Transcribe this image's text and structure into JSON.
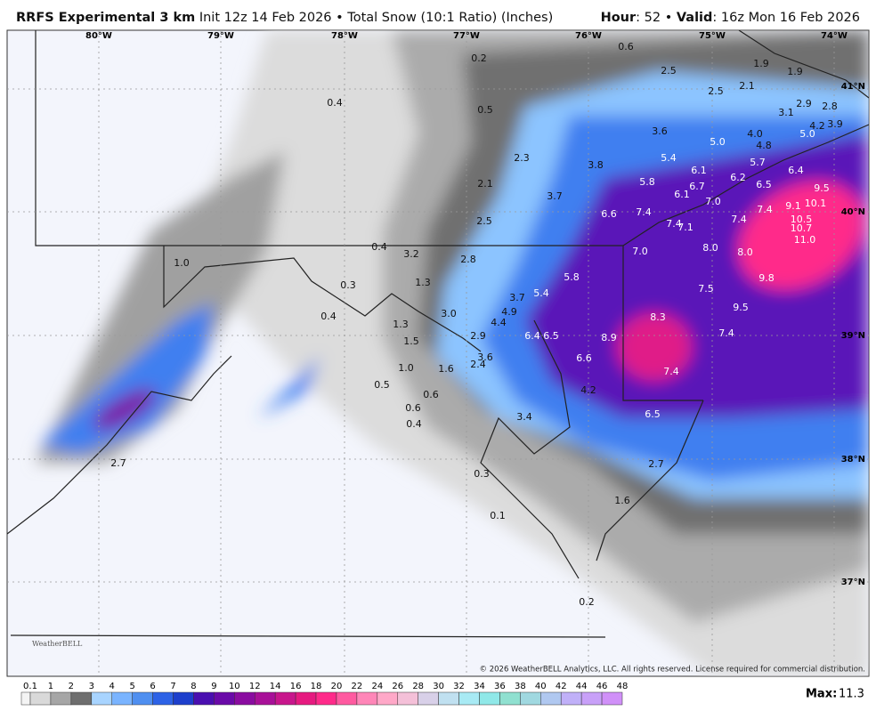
{
  "header": {
    "model": "RRFS Experimental 3 km",
    "description": "Init 12z 14 Feb 2026 • Total Snow (10:1 Ratio) (Inches)",
    "hour_label": "Hour",
    "hour": ": 52 •",
    "valid_label": "Valid",
    "valid": ": 16z Mon 16 Feb 2026"
  },
  "map": {
    "longitudes": [
      "80°W",
      "79°W",
      "78°W",
      "77°W",
      "76°W",
      "75°W",
      "74°W"
    ],
    "latitudes": [
      "41°N",
      "40°N",
      "39°N",
      "38°N",
      "37°N"
    ],
    "point_labels": [
      "0.6",
      "0.2",
      "2.5",
      "1.9",
      "1.9",
      "2.1",
      "2.5",
      "0.4",
      "0.5",
      "2.9",
      "2.8",
      "3.1",
      "3.6",
      "4.0",
      "4.2",
      "3.9",
      "5.0",
      "5.0",
      "4.8",
      "2.3",
      "3.8",
      "5.4",
      "5.7",
      "6.1",
      "6.4",
      "6.2",
      "5.8",
      "2.1",
      "6.7",
      "6.5",
      "9.5",
      "3.7",
      "6.1",
      "7.0",
      "9.1",
      "10.1",
      "6.6",
      "7.4",
      "7.4",
      "7.4",
      "10.5",
      "2.5",
      "7.4",
      "7.1",
      "10.7",
      "11.0",
      "0.4",
      "8.0",
      "8.0",
      "7.0",
      "3.2",
      "2.8",
      "1.0",
      "5.8",
      "9.8",
      "0.3",
      "1.3",
      "7.5",
      "5.4",
      "3.7",
      "0.4",
      "3.0",
      "4.9",
      "9.5",
      "8.3",
      "1.3",
      "4.4",
      "6.4",
      "6.5",
      "8.9",
      "7.4",
      "1.5",
      "2.9",
      "3.6",
      "6.6",
      "2.4",
      "1.0",
      "1.6",
      "7.4",
      "0.5",
      "4.2",
      "0.6",
      "0.6",
      "6.5",
      "3.4",
      "0.4",
      "2.7",
      "0.3",
      "2.7",
      "1.6",
      "0.1",
      "0.2"
    ],
    "copyright": "© 2026 WeatherBELL Analytics, LLC. All rights reserved. License required for commercial distribution.",
    "logo": "WeatherBELL"
  },
  "colorbar": {
    "levels": [
      0.1,
      1,
      2,
      3,
      4,
      5,
      6,
      7,
      8,
      9,
      10,
      12,
      14,
      16,
      18,
      20,
      22,
      24,
      26,
      28,
      30,
      32,
      34,
      36,
      38,
      40,
      42,
      44,
      46,
      48
    ],
    "colors": [
      "#d9d9d9",
      "#a6a6a6",
      "#6e6e6e",
      "#a8d4ff",
      "#7ab4ff",
      "#4f8ff0",
      "#2d62e6",
      "#1d3fcc",
      "#4a0fb0",
      "#6a0aa8",
      "#8a0ca0",
      "#a81098",
      "#c8168c",
      "#e61a80",
      "#ff2a8a",
      "#ff5aa0",
      "#ff86b8",
      "#ffa8c8",
      "#f4c0d8",
      "#d8d0e8",
      "#c0e0f0",
      "#a8eaf4",
      "#90e8e8",
      "#90e0d0",
      "#a0d8e0",
      "#b0c8f0",
      "#c0b0f8",
      "#c8a0f8",
      "#d090f8"
    ]
  },
  "footer": {
    "max_label": "Max:",
    "max": 11.3
  }
}
